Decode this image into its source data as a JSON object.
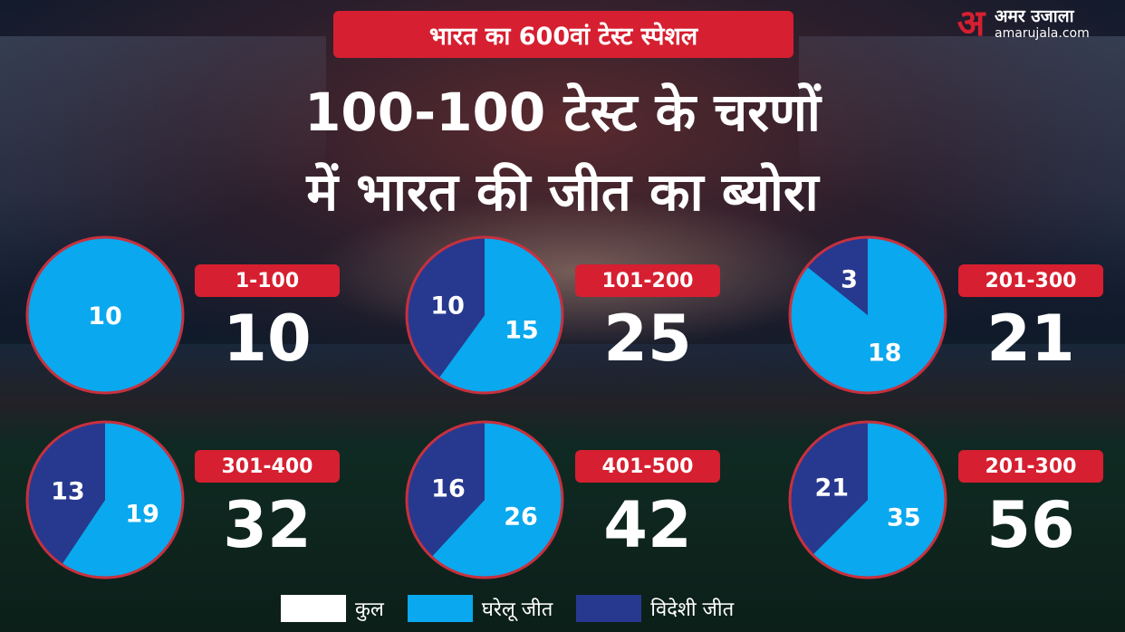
{
  "banner": "भारत का 600वां टेस्ट स्पेशल",
  "headline": [
    "100-100 टेस्ट के चरणों",
    "में भारत की जीत का ब्योरा"
  ],
  "logo": {
    "mark": "अ",
    "name": "अमर उजाला",
    "url": "amarujala.com"
  },
  "colors": {
    "total": "#ffffff",
    "home": "#0aa8ee",
    "away": "#27398f",
    "accent": "#d61f30",
    "pie_border": "#c8303d"
  },
  "legend": [
    {
      "label": "कुल",
      "color": "#ffffff"
    },
    {
      "label": "घरेलू जीत",
      "color": "#0aa8ee"
    },
    {
      "label": "विदेशी जीत",
      "color": "#27398f"
    }
  ],
  "chart_data": {
    "type": "pie",
    "series_names": [
      "घरेलू जीत",
      "विदेशी जीत"
    ],
    "items": [
      {
        "range": "1-100",
        "total": "10",
        "home": 10,
        "away": 0
      },
      {
        "range": "101-200",
        "total": "25",
        "home": 15,
        "away": 10
      },
      {
        "range": "201-300",
        "total": "21",
        "home": 18,
        "away": 3
      },
      {
        "range": "301-400",
        "total": "32",
        "home": 19,
        "away": 13
      },
      {
        "range": "401-500",
        "total": "42",
        "home": 26,
        "away": 16
      },
      {
        "range": "201-300",
        "total": "56",
        "home": 35,
        "away": 21
      }
    ]
  }
}
